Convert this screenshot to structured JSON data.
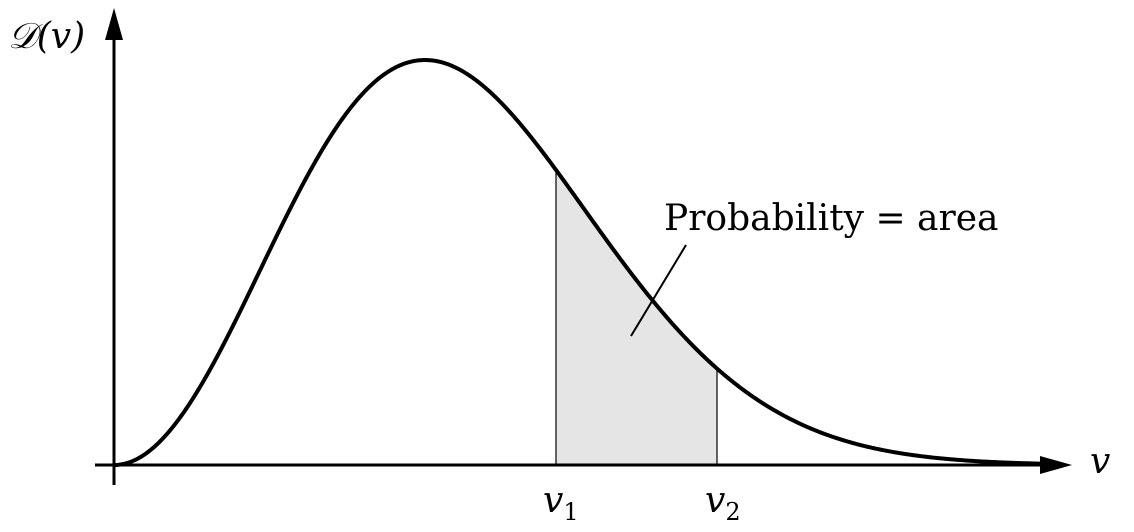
{
  "figure": {
    "y_axis_label": "𝒟(v)",
    "x_axis_label": "v",
    "tick_labels": [
      {
        "main": "v",
        "sub": "1"
      },
      {
        "main": "v",
        "sub": "2"
      }
    ],
    "annotation": "Probability = area",
    "colors": {
      "curve": "#000000",
      "shaded_area": "#e5e5e5",
      "axes": "#000000"
    }
  }
}
